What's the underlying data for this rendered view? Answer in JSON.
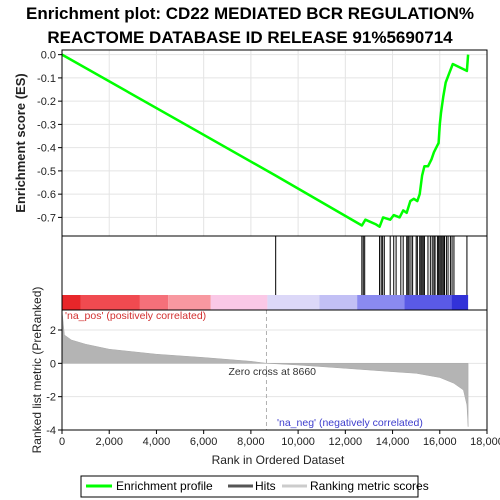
{
  "chart_data": {
    "type": "line",
    "title_line1": "Enrichment plot: CD22 MEDIATED BCR REGULATION%",
    "title_line2": "REACTOME DATABASE ID RELEASE 91%5690714",
    "xlabel": "Rank in Ordered Dataset",
    "ylabel_top": "Enrichment score (ES)",
    "ylabel_bottom": "Ranked list metric (PreRanked)",
    "xlim": [
      0,
      18000
    ],
    "x_ticks": [
      0,
      2000,
      4000,
      6000,
      8000,
      10000,
      12000,
      14000,
      16000,
      18000
    ],
    "x_tick_labels": [
      "0",
      "2,000",
      "4,000",
      "6,000",
      "8,000",
      "10,000",
      "12,000",
      "14,000",
      "16,000",
      "18,000"
    ],
    "es_ylim": [
      -0.78,
      0.02
    ],
    "es_ticks": [
      0.0,
      -0.1,
      -0.2,
      -0.3,
      -0.4,
      -0.5,
      -0.6,
      -0.7
    ],
    "es_tick_labels": [
      "0.0",
      "-0.1",
      "-0.2",
      "-0.3",
      "-0.4",
      "-0.5",
      "-0.6",
      "-0.7"
    ],
    "metric_ylim": [
      -4,
      3.2
    ],
    "metric_ticks": [
      2,
      0,
      -2,
      -4
    ],
    "metric_tick_labels": [
      "2",
      "0",
      "-2",
      "-4"
    ],
    "series": [
      {
        "name": "Enrichment profile",
        "color": "#00ff00",
        "points": [
          [
            0,
            0.0
          ],
          [
            9050,
            -0.52
          ],
          [
            12700,
            -0.735
          ],
          [
            12850,
            -0.71
          ],
          [
            13300,
            -0.73
          ],
          [
            13450,
            -0.74
          ],
          [
            13600,
            -0.7
          ],
          [
            13900,
            -0.71
          ],
          [
            14050,
            -0.69
          ],
          [
            14300,
            -0.7
          ],
          [
            14450,
            -0.67
          ],
          [
            14600,
            -0.68
          ],
          [
            14750,
            -0.63
          ],
          [
            14900,
            -0.62
          ],
          [
            15050,
            -0.63
          ],
          [
            15150,
            -0.6
          ],
          [
            15250,
            -0.52
          ],
          [
            15350,
            -0.48
          ],
          [
            15500,
            -0.48
          ],
          [
            15650,
            -0.45
          ],
          [
            15750,
            -0.42
          ],
          [
            15850,
            -0.4
          ],
          [
            15950,
            -0.38
          ],
          [
            16000,
            -0.3
          ],
          [
            16050,
            -0.25
          ],
          [
            16150,
            -0.18
          ],
          [
            16250,
            -0.12
          ],
          [
            16400,
            -0.08
          ],
          [
            16550,
            -0.04
          ],
          [
            17150,
            -0.07
          ],
          [
            17200,
            0.0
          ]
        ]
      }
    ],
    "hits": [
      9050,
      12700,
      12760,
      12820,
      13450,
      13520,
      13580,
      13650,
      13900,
      14050,
      14150,
      14350,
      14450,
      14600,
      14650,
      14700,
      14780,
      14850,
      15000,
      15050,
      15150,
      15200,
      15250,
      15300,
      15350,
      15500,
      15600,
      15680,
      15750,
      15800,
      15900,
      15950,
      16000,
      16050,
      16100,
      16150,
      16200,
      16280,
      16350,
      16450,
      16520,
      16600,
      17150
    ],
    "zero_cross": 8660,
    "zero_cross_label": "Zero cross at 8660",
    "pos_label": "'na_pos' (positively correlated)",
    "neg_label": "'na_neg' (negatively correlated)",
    "colorbar_segments": [
      {
        "from": 0,
        "to": 800,
        "color": "#e8262a"
      },
      {
        "from": 800,
        "to": 3300,
        "color": "#f04a50"
      },
      {
        "from": 3300,
        "to": 4500,
        "color": "#f5707a"
      },
      {
        "from": 4500,
        "to": 6300,
        "color": "#f898a0"
      },
      {
        "from": 6300,
        "to": 8700,
        "color": "#fac8e6"
      },
      {
        "from": 8700,
        "to": 10900,
        "color": "#dcd8f8"
      },
      {
        "from": 10900,
        "to": 12500,
        "color": "#c2c0f5"
      },
      {
        "from": 12500,
        "to": 14500,
        "color": "#8a8af0"
      },
      {
        "from": 14500,
        "to": 16500,
        "color": "#5a5ae6"
      },
      {
        "from": 16500,
        "to": 17200,
        "color": "#3232d8"
      }
    ],
    "metric_profile": [
      [
        0,
        3.2
      ],
      [
        100,
        1.7
      ],
      [
        400,
        1.4
      ],
      [
        1000,
        1.15
      ],
      [
        2000,
        0.85
      ],
      [
        4000,
        0.55
      ],
      [
        6000,
        0.35
      ],
      [
        8000,
        0.12
      ],
      [
        8660,
        0.0
      ],
      [
        10000,
        -0.1
      ],
      [
        12000,
        -0.3
      ],
      [
        14000,
        -0.5
      ],
      [
        15000,
        -0.6
      ],
      [
        16000,
        -0.85
      ],
      [
        16600,
        -1.2
      ],
      [
        17000,
        -1.6
      ],
      [
        17150,
        -2.5
      ],
      [
        17200,
        -3.8
      ]
    ],
    "legend": {
      "enrichment": "Enrichment profile",
      "hits": "Hits",
      "ranking": "Ranking metric scores"
    }
  }
}
